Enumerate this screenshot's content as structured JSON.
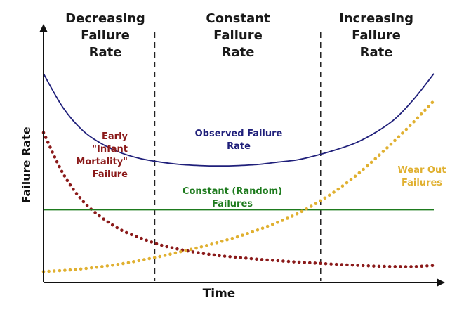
{
  "chart_data": {
    "type": "line",
    "title": "",
    "xlabel": "Time",
    "ylabel": "Failure Rate",
    "regions": [
      {
        "label": "Decreasing\nFailure\nRate"
      },
      {
        "label": "Constant\nFailure\nRate"
      },
      {
        "label": "Increasing\nFailure\nRate"
      }
    ],
    "x": [
      0,
      5,
      10,
      15,
      20,
      25,
      30,
      35,
      40,
      45,
      50,
      55,
      60,
      65,
      70,
      75,
      80,
      85,
      90,
      95,
      100
    ],
    "series": [
      {
        "name": "Observed Failure Rate",
        "label": "Observed Failure\nRate",
        "color": "#1f1f7a",
        "style": "solid",
        "values": [
          88,
          73,
          63,
          57,
          53,
          50.5,
          49,
          48,
          47.5,
          47.3,
          47.5,
          48,
          49,
          50,
          52,
          54.5,
          57.5,
          62,
          68,
          77,
          88
        ]
      },
      {
        "name": "Early \"Infant Mortality\" Failure",
        "label": "Early\n\"Infant\nMortality\"\nFailure",
        "color": "#8b1a1a",
        "style": "dotted",
        "values": [
          62,
          44,
          32,
          24.5,
          19,
          15.5,
          12.5,
          10.5,
          9,
          7.8,
          7,
          6.2,
          5.6,
          5,
          4.5,
          4,
          3.6,
          3.2,
          3,
          3,
          3.5
        ]
      },
      {
        "name": "Constant (Random) Failures",
        "label": "Constant (Random)\nFailures",
        "color": "#1e7b1e",
        "style": "solid",
        "values": [
          28,
          28,
          28,
          28,
          28,
          28,
          28,
          28,
          28,
          28,
          28,
          28,
          28,
          28,
          28,
          28,
          28,
          28,
          28,
          28,
          28
        ]
      },
      {
        "name": "Wear Out Failures",
        "label": "Wear Out\nFailures",
        "color": "#e0b030",
        "style": "dotted",
        "values": [
          0.8,
          1.3,
          2,
          3,
          4.2,
          5.8,
          7.5,
          9.5,
          11.5,
          13.8,
          16.3,
          19.2,
          22.5,
          26.3,
          31,
          36.5,
          43,
          50.5,
          58.5,
          67,
          76
        ]
      }
    ],
    "xlim": [
      0,
      100
    ],
    "ylim": [
      0,
      100
    ],
    "grid": false,
    "region_boundaries": [
      28.5,
      71
    ]
  }
}
